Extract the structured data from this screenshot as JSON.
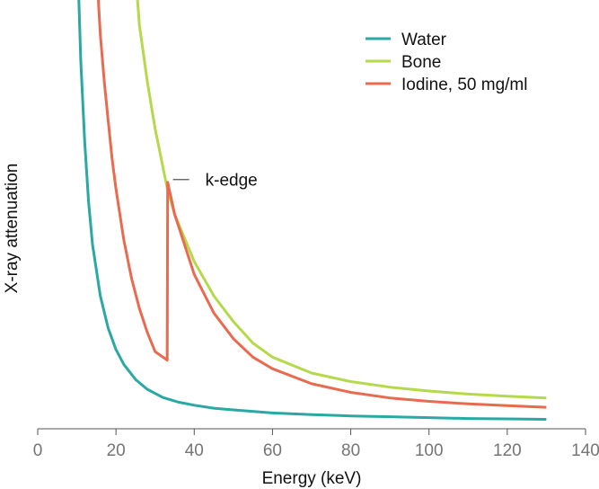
{
  "chart_data": {
    "type": "line",
    "title": "",
    "xlabel": "Energy (keV)",
    "ylabel": "X-ray attenuation",
    "xlim": [
      0,
      140
    ],
    "ylim": [
      0,
      1
    ],
    "xticks": [
      0,
      20,
      40,
      60,
      80,
      100,
      120,
      140
    ],
    "xtick_labels": [
      "0",
      "20",
      "40",
      "60",
      "80",
      "100",
      "120",
      "140"
    ],
    "yticks_shown": false,
    "grid": false,
    "legend_position": "top-right",
    "series": [
      {
        "name": "Water",
        "color": "#2aa8a4",
        "x": [
          10.5,
          11,
          12,
          13,
          14,
          16,
          18,
          20,
          22,
          25,
          28,
          32,
          36,
          40,
          45,
          50,
          60,
          70,
          80,
          90,
          100,
          110,
          120,
          130
        ],
        "y": [
          1.0,
          0.86,
          0.67,
          0.53,
          0.43,
          0.31,
          0.235,
          0.185,
          0.15,
          0.115,
          0.092,
          0.073,
          0.062,
          0.055,
          0.048,
          0.044,
          0.037,
          0.033,
          0.03,
          0.028,
          0.026,
          0.024,
          0.023,
          0.022
        ]
      },
      {
        "name": "Bone",
        "color": "#b5d94a",
        "x": [
          25.5,
          26,
          28,
          30,
          33,
          35,
          40,
          45,
          50,
          55,
          60,
          70,
          80,
          90,
          100,
          110,
          120,
          130
        ],
        "y": [
          1.0,
          0.94,
          0.81,
          0.7,
          0.565,
          0.5,
          0.39,
          0.31,
          0.25,
          0.2,
          0.167,
          0.13,
          0.11,
          0.097,
          0.088,
          0.081,
          0.076,
          0.072
        ]
      },
      {
        "name": "Iodine, 50 mg/ml",
        "color": "#ea6a50",
        "x": [
          15.5,
          16,
          17,
          18,
          19,
          20,
          22,
          24,
          26,
          28,
          30,
          33.1,
          33.2,
          35,
          40,
          45,
          50,
          55,
          60,
          70,
          80,
          90,
          100,
          110,
          120,
          130
        ],
        "y": [
          1.0,
          0.92,
          0.81,
          0.72,
          0.63,
          0.56,
          0.44,
          0.35,
          0.28,
          0.225,
          0.18,
          0.16,
          0.575,
          0.5,
          0.36,
          0.27,
          0.21,
          0.167,
          0.14,
          0.105,
          0.085,
          0.072,
          0.064,
          0.058,
          0.054,
          0.05
        ]
      }
    ],
    "annotations": [
      {
        "text": "k-edge",
        "x": 33.2,
        "y": 0.575
      }
    ]
  }
}
